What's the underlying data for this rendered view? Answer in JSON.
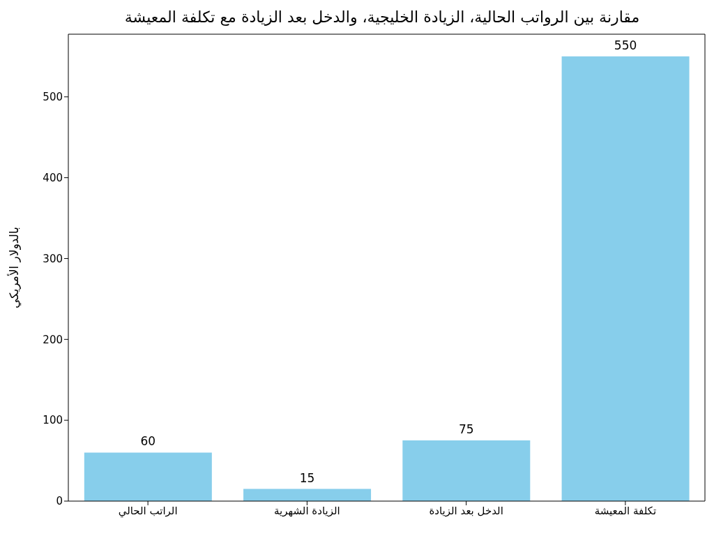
{
  "chart_data": {
    "type": "bar",
    "title": "مقارنة بين الرواتب الحالية، الزيادة الخليجية، والدخل بعد الزيادة مع تكلفة المعيشة",
    "ylabel": "بالدولار الأمريكي",
    "categories": [
      "الراتب الحالي",
      "الزيادة الشهرية",
      "الدخل بعد الزيادة",
      "تكلفة المعيشة"
    ],
    "values": [
      60,
      15,
      75,
      550
    ],
    "color": "#87ceeb",
    "ylim": [
      0,
      577.5
    ],
    "yticks": [
      0,
      100,
      200,
      300,
      400,
      500
    ],
    "data_labels": true
  }
}
